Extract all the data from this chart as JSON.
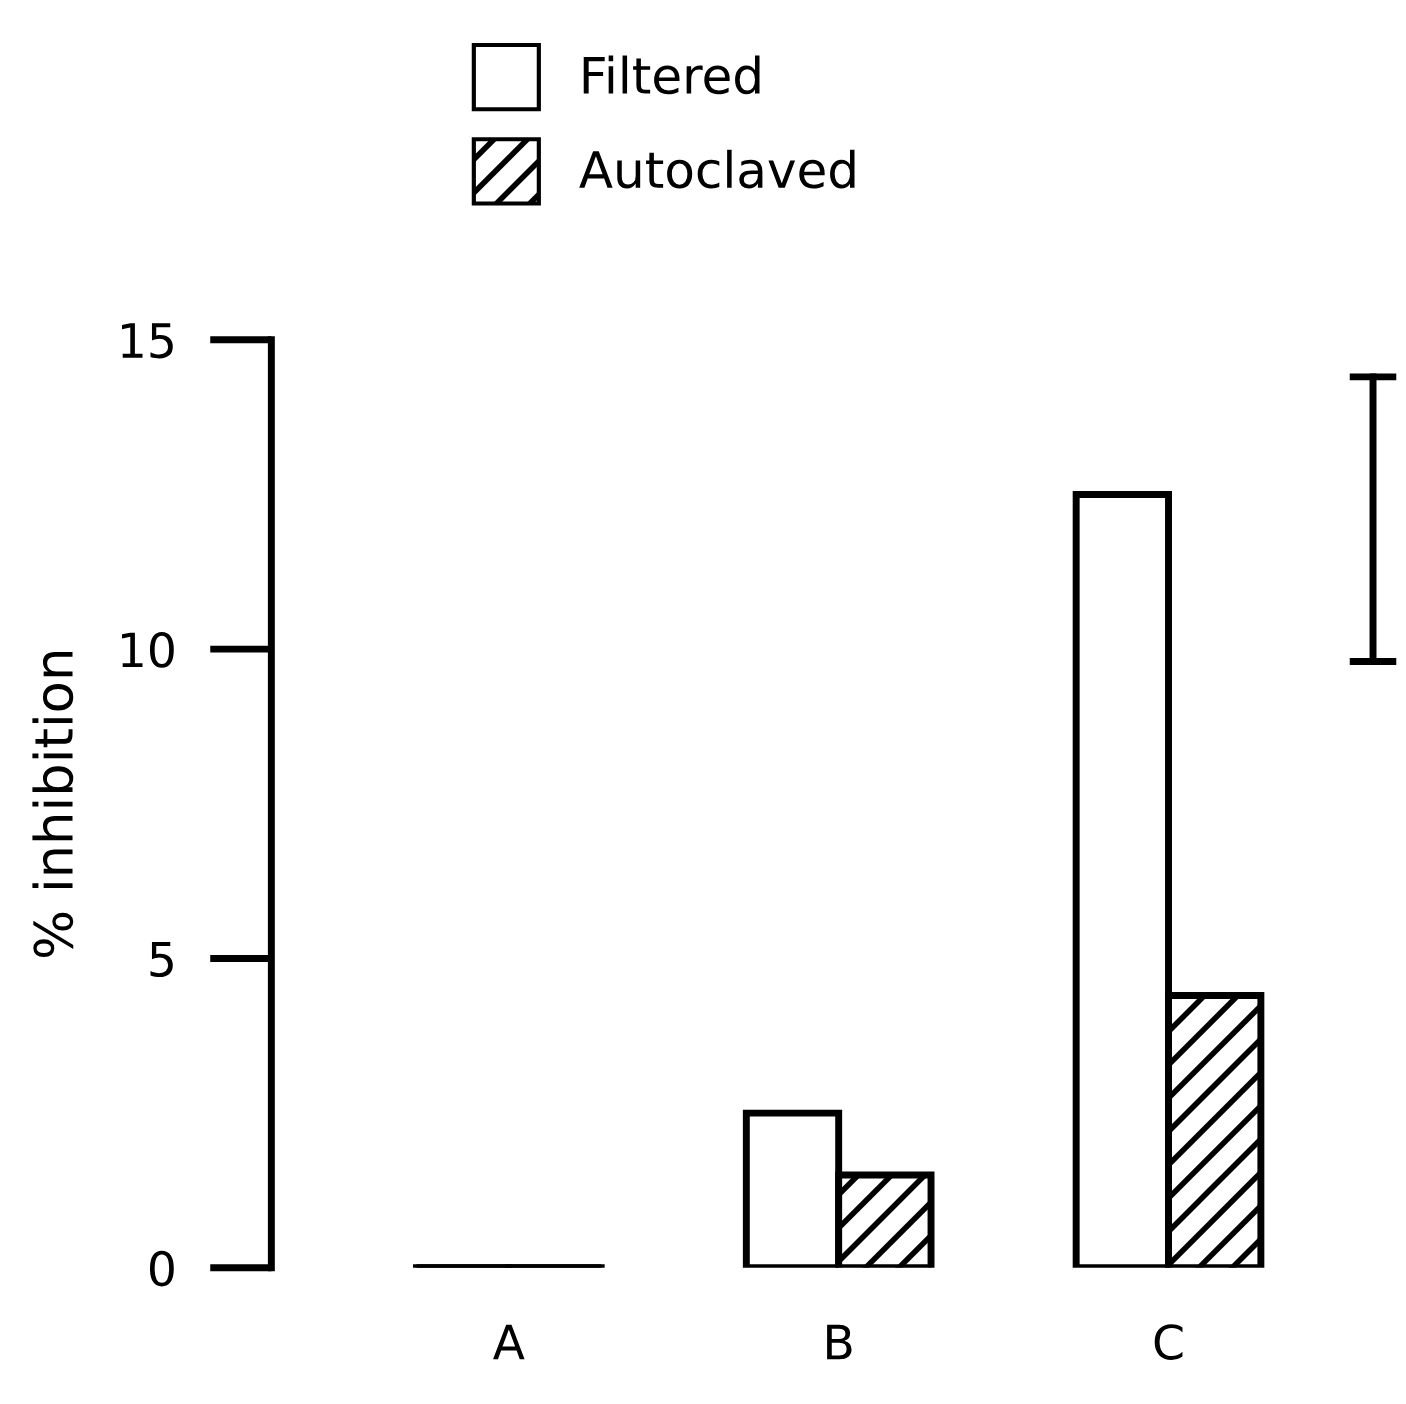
{
  "chart_data": {
    "type": "bar",
    "ylabel": "% inhibition",
    "categories": [
      "A",
      "B",
      "C"
    ],
    "series": [
      {
        "name": "Filtered",
        "color": "#ffffff",
        "values": [
          0,
          2.5,
          12.5
        ]
      },
      {
        "name": "Autoclaved",
        "color": "#000000",
        "values": [
          0,
          1.5,
          4.4
        ]
      }
    ],
    "ylim": [
      0,
      15
    ],
    "yticks": [
      0,
      5,
      10,
      15
    ],
    "grid": false,
    "legend": "top left"
  }
}
